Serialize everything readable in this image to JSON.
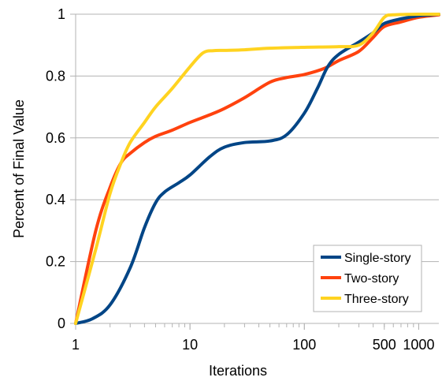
{
  "chart_data": {
    "type": "line",
    "title": "",
    "xlabel": "Iterations",
    "ylabel": "Percent of Final Value",
    "xscale": "log",
    "xlim": [
      1,
      1500
    ],
    "ylim": [
      0,
      1
    ],
    "x_ticks": [
      {
        "value": 1,
        "label": "1"
      },
      {
        "value": 10,
        "label": "10"
      },
      {
        "value": 100,
        "label": "100"
      },
      {
        "value": 500,
        "label": "500"
      },
      {
        "value": 1000,
        "label": "1000"
      }
    ],
    "y_ticks": [
      {
        "value": 0,
        "label": "0"
      },
      {
        "value": 0.2,
        "label": "0.2"
      },
      {
        "value": 0.4,
        "label": "0.4"
      },
      {
        "value": 0.6,
        "label": "0.6"
      },
      {
        "value": 0.8,
        "label": "0.8"
      },
      {
        "value": 1,
        "label": "1"
      }
    ],
    "grid": "horizontal",
    "legend_position": "bottom-right",
    "series": [
      {
        "name": "Single-story",
        "color": "#004586",
        "points": [
          [
            1,
            0
          ],
          [
            1.4,
            0.015
          ],
          [
            2,
            0.06
          ],
          [
            3,
            0.18
          ],
          [
            4,
            0.31
          ],
          [
            5,
            0.39
          ],
          [
            6,
            0.425
          ],
          [
            8,
            0.455
          ],
          [
            10,
            0.48
          ],
          [
            15,
            0.54
          ],
          [
            20,
            0.57
          ],
          [
            30,
            0.585
          ],
          [
            50,
            0.59
          ],
          [
            70,
            0.61
          ],
          [
            100,
            0.68
          ],
          [
            130,
            0.76
          ],
          [
            160,
            0.83
          ],
          [
            200,
            0.87
          ],
          [
            300,
            0.91
          ],
          [
            400,
            0.94
          ],
          [
            500,
            0.97
          ],
          [
            700,
            0.985
          ],
          [
            1000,
            0.995
          ],
          [
            1500,
            1.0
          ]
        ]
      },
      {
        "name": "Two-story",
        "color": "#ff420e",
        "points": [
          [
            1,
            0
          ],
          [
            1.5,
            0.3
          ],
          [
            2,
            0.44
          ],
          [
            2.5,
            0.52
          ],
          [
            3,
            0.55
          ],
          [
            4,
            0.585
          ],
          [
            5,
            0.605
          ],
          [
            7,
            0.625
          ],
          [
            10,
            0.65
          ],
          [
            15,
            0.675
          ],
          [
            20,
            0.695
          ],
          [
            30,
            0.73
          ],
          [
            50,
            0.78
          ],
          [
            70,
            0.795
          ],
          [
            100,
            0.805
          ],
          [
            150,
            0.825
          ],
          [
            200,
            0.85
          ],
          [
            300,
            0.88
          ],
          [
            400,
            0.925
          ],
          [
            500,
            0.96
          ],
          [
            700,
            0.975
          ],
          [
            1000,
            0.99
          ],
          [
            1500,
            0.998
          ]
        ]
      },
      {
        "name": "Three-story",
        "color": "#ffd320",
        "points": [
          [
            1,
            0
          ],
          [
            1.5,
            0.24
          ],
          [
            2,
            0.42
          ],
          [
            2.5,
            0.52
          ],
          [
            3,
            0.585
          ],
          [
            4,
            0.65
          ],
          [
            5,
            0.7
          ],
          [
            7,
            0.76
          ],
          [
            10,
            0.83
          ],
          [
            13,
            0.875
          ],
          [
            16,
            0.882
          ],
          [
            20,
            0.883
          ],
          [
            30,
            0.885
          ],
          [
            50,
            0.89
          ],
          [
            100,
            0.893
          ],
          [
            200,
            0.895
          ],
          [
            300,
            0.9
          ],
          [
            400,
            0.94
          ],
          [
            500,
            0.99
          ],
          [
            600,
            0.998
          ],
          [
            1000,
            1.0
          ],
          [
            1500,
            1.0
          ]
        ]
      }
    ]
  }
}
